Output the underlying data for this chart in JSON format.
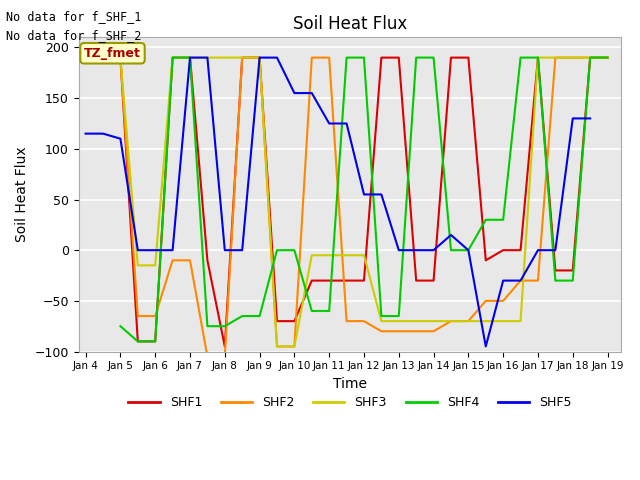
{
  "title": "Soil Heat Flux",
  "xlabel": "Time",
  "ylabel": "Soil Heat Flux",
  "annotation_lines": [
    "No data for f_SHF_1",
    "No data for f_SHF_2"
  ],
  "legend_label": "TZ_fmet",
  "ylim": [
    -100,
    210
  ],
  "series_names": [
    "SHF1",
    "SHF2",
    "SHF3",
    "SHF4",
    "SHF5"
  ],
  "series_colors": [
    "#dd0000",
    "#ff8800",
    "#cccc00",
    "#00cc00",
    "#0000ee"
  ],
  "background_color": "#e8e8e8",
  "x_tick_labels": [
    "Jan 4",
    "Jan 5",
    "Jan 6",
    "Jan 7",
    "Jan 8",
    "Jan 9",
    "Jan 10",
    "Jan 11",
    "Jan 12",
    "Jan 13",
    "Jan 14",
    "Jan 15",
    "Jan 16",
    "Jan 17",
    "Jan 18",
    "Jan 19"
  ],
  "x_ticks": [
    4,
    5,
    6,
    7,
    8,
    9,
    10,
    11,
    12,
    13,
    14,
    15,
    16,
    17,
    18,
    19
  ],
  "SHF1_x": [
    4.5,
    5.0,
    5.5,
    6.0,
    6.5,
    7.0,
    7.5,
    8.0,
    8.5,
    9.0,
    9.5,
    10.0,
    10.5,
    11.0,
    11.5,
    12.0,
    12.5,
    13.0,
    13.5,
    14.0,
    14.5,
    15.0,
    15.5,
    16.0,
    16.5,
    17.0,
    17.5,
    18.0,
    18.5,
    19.0
  ],
  "SHF1_y": [
    null,
    190,
    -90,
    -90,
    190,
    190,
    -10,
    -95,
    190,
    190,
    -70,
    -70,
    -30,
    -30,
    -30,
    -30,
    190,
    190,
    -30,
    -30,
    190,
    190,
    -10,
    0,
    0,
    190,
    -20,
    -20,
    190,
    190
  ],
  "SHF2_x": [
    4.5,
    5.0,
    5.5,
    6.0,
    6.5,
    7.0,
    7.5,
    8.0,
    8.5,
    9.0,
    9.5,
    10.0,
    10.5,
    11.0,
    11.5,
    12.0,
    12.5,
    13.0,
    13.5,
    14.0,
    14.5,
    15.0,
    15.5,
    16.0,
    16.5,
    17.0,
    17.5,
    18.0,
    18.5,
    19.0
  ],
  "SHF2_y": [
    null,
    190,
    -65,
    -65,
    -10,
    -10,
    -105,
    -105,
    190,
    190,
    -95,
    -95,
    190,
    190,
    -70,
    -70,
    -80,
    -80,
    -80,
    -80,
    -70,
    -70,
    -50,
    -50,
    -30,
    -30,
    190,
    190,
    190,
    190
  ],
  "SHF3_x": [
    4.5,
    5.0,
    5.5,
    6.0,
    6.5,
    7.0,
    7.5,
    8.0,
    8.5,
    9.0,
    9.5,
    10.0,
    10.5,
    11.0,
    11.5,
    12.0,
    12.5,
    13.0,
    13.5,
    14.0,
    14.5,
    15.0,
    15.5,
    16.0,
    16.5,
    17.0,
    17.5,
    18.0,
    18.5,
    19.0
  ],
  "SHF3_y": [
    null,
    190,
    -15,
    -15,
    190,
    190,
    190,
    190,
    190,
    190,
    -95,
    -95,
    -5,
    -5,
    -5,
    -5,
    -70,
    -70,
    -70,
    -70,
    -70,
    -70,
    -70,
    -70,
    -70,
    190,
    190,
    190,
    190,
    190
  ],
  "SHF4_x": [
    4.5,
    5.0,
    5.5,
    6.0,
    6.5,
    7.0,
    7.5,
    8.0,
    8.5,
    9.0,
    9.5,
    10.0,
    10.5,
    11.0,
    11.5,
    12.0,
    12.5,
    13.0,
    13.5,
    14.0,
    14.5,
    15.0,
    15.5,
    16.0,
    16.5,
    17.0,
    17.5,
    18.0,
    18.5,
    19.0
  ],
  "SHF4_y": [
    null,
    -75,
    -90,
    -90,
    190,
    190,
    -75,
    -75,
    -65,
    -65,
    0,
    0,
    -60,
    -60,
    190,
    190,
    -65,
    -65,
    190,
    190,
    0,
    0,
    30,
    30,
    190,
    190,
    -30,
    -30,
    190,
    190
  ],
  "SHF5_x": [
    4.0,
    4.5,
    5.0,
    5.5,
    6.0,
    6.5,
    7.0,
    7.5,
    8.0,
    8.5,
    9.0,
    9.5,
    10.0,
    10.5,
    11.0,
    11.5,
    12.0,
    12.5,
    13.0,
    13.5,
    14.0,
    14.5,
    15.0,
    15.5,
    16.0,
    16.5,
    17.0,
    17.5,
    18.0,
    18.5
  ],
  "SHF5_y": [
    115,
    115,
    110,
    0,
    0,
    0,
    190,
    190,
    0,
    0,
    190,
    190,
    155,
    155,
    125,
    125,
    55,
    55,
    0,
    0,
    0,
    15,
    0,
    -95,
    -30,
    -30,
    0,
    0,
    130,
    130
  ]
}
